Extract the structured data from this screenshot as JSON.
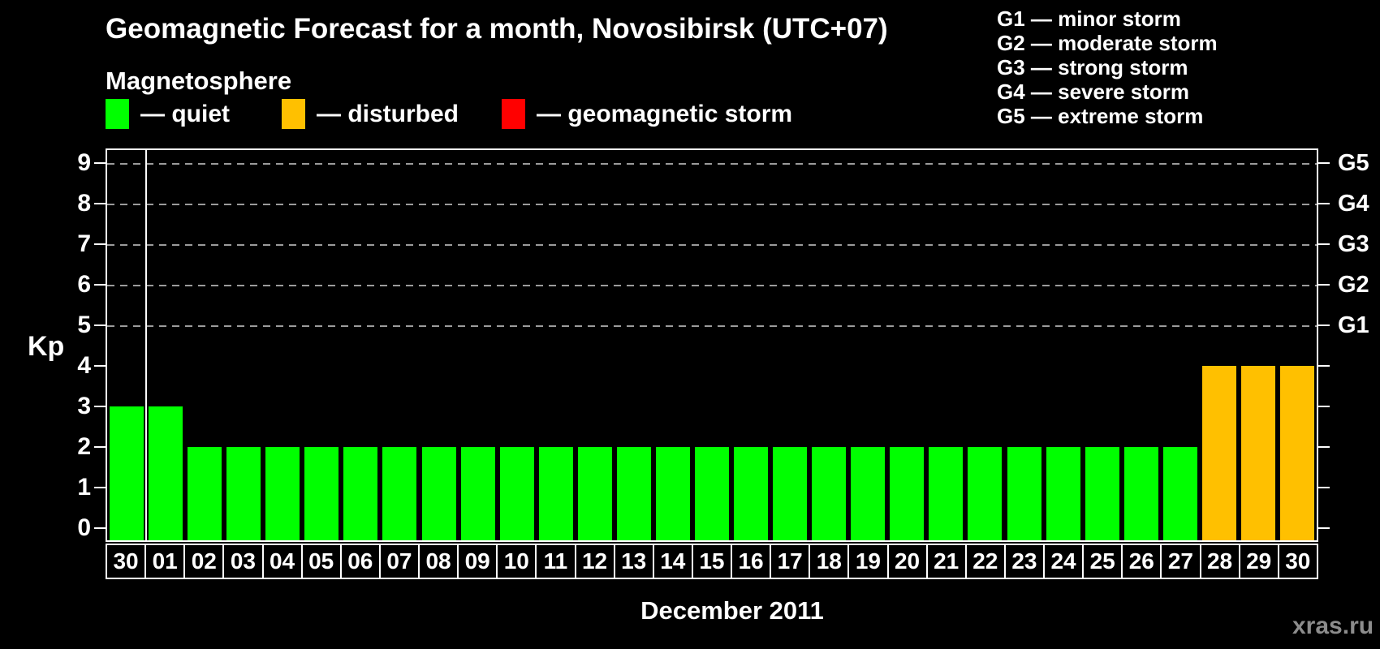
{
  "header": {
    "title": "Geomagnetic Forecast for a month, Novosibirsk (UTC+07)",
    "subtitle": "Magnetosphere"
  },
  "legend": {
    "items": [
      {
        "key": "quiet",
        "label": "— quiet",
        "color": "#00FF00"
      },
      {
        "key": "disturbed",
        "label": "— disturbed",
        "color": "#FFC000"
      },
      {
        "key": "storm",
        "label": "— geomagnetic storm",
        "color": "#FF0000"
      }
    ]
  },
  "storm_scale": {
    "lines": [
      "G1 — minor storm",
      "G2 — moderate storm",
      "G3 — strong storm",
      "G4 — severe storm",
      "G5 — extreme storm"
    ]
  },
  "watermark": "xras.ru",
  "colors": {
    "background": "#000000",
    "axis": "#FFFFFF",
    "gridline": "#9B9B9B",
    "quiet": "#00FF00",
    "disturbed": "#FFC000",
    "storm": "#FF0000",
    "watermark": "#8C8C8C"
  },
  "chart_data": {
    "type": "bar",
    "title": "Geomagnetic Forecast for a month, Novosibirsk (UTC+07)",
    "xlabel": "December 2011",
    "ylabel": "Kp",
    "ylim": [
      0,
      9.4
    ],
    "grid": "horizontal dashed lines at storm levels only",
    "legend_position": "top-left",
    "y_ticks": [
      0,
      1,
      2,
      3,
      4,
      5,
      6,
      7,
      8,
      9
    ],
    "gridlines_at_kp": [
      5,
      6,
      7,
      8,
      9
    ],
    "right_axis_labels": [
      {
        "kp": 5,
        "label": "G1"
      },
      {
        "kp": 6,
        "label": "G2"
      },
      {
        "kp": 7,
        "label": "G3"
      },
      {
        "kp": 8,
        "label": "G4"
      },
      {
        "kp": 9,
        "label": "G5"
      }
    ],
    "categories": [
      "30",
      "01",
      "02",
      "03",
      "04",
      "05",
      "06",
      "07",
      "08",
      "09",
      "10",
      "11",
      "12",
      "13",
      "14",
      "15",
      "16",
      "17",
      "18",
      "19",
      "20",
      "21",
      "22",
      "23",
      "24",
      "25",
      "26",
      "27",
      "28",
      "29",
      "30"
    ],
    "month_boundary_after_index": 0,
    "series": [
      {
        "name": "Kp forecast",
        "values": [
          3,
          3,
          2,
          2,
          2,
          2,
          2,
          2,
          2,
          2,
          2,
          2,
          2,
          2,
          2,
          2,
          2,
          2,
          2,
          2,
          2,
          2,
          2,
          2,
          2,
          2,
          2,
          2,
          4,
          4,
          4
        ],
        "statuses": [
          "quiet",
          "quiet",
          "quiet",
          "quiet",
          "quiet",
          "quiet",
          "quiet",
          "quiet",
          "quiet",
          "quiet",
          "quiet",
          "quiet",
          "quiet",
          "quiet",
          "quiet",
          "quiet",
          "quiet",
          "quiet",
          "quiet",
          "quiet",
          "quiet",
          "quiet",
          "quiet",
          "quiet",
          "quiet",
          "quiet",
          "quiet",
          "quiet",
          "disturbed",
          "disturbed",
          "disturbed"
        ]
      }
    ]
  }
}
